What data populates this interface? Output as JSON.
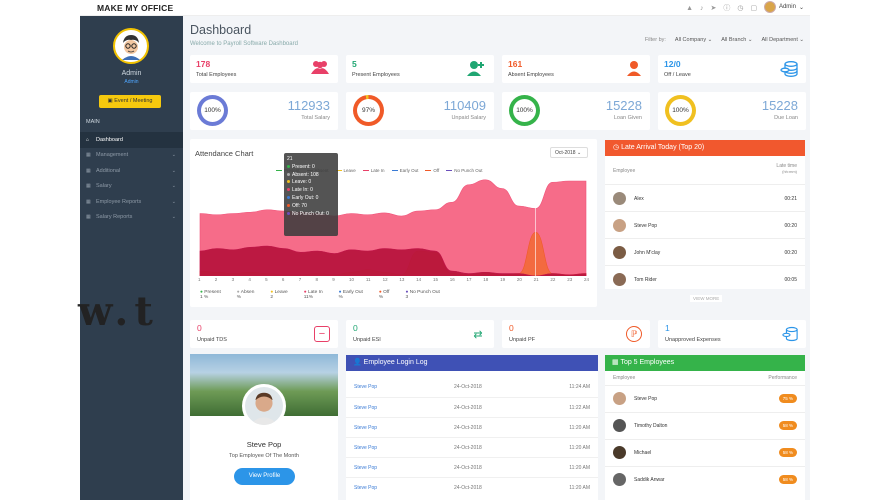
{
  "app": {
    "brand": "MAKE MY OFFICE",
    "admin_label": "Admin"
  },
  "sidebar": {
    "user_name": "Admin",
    "user_role": "Admin",
    "event_button": "Event / Meeting",
    "section": "MAIN",
    "items": [
      {
        "label": "Dashboard",
        "icon": "home-icon",
        "active": true
      },
      {
        "label": "Management",
        "icon": "grid-icon"
      },
      {
        "label": "Additional",
        "icon": "grid-icon"
      },
      {
        "label": "Salary",
        "icon": "grid-icon"
      },
      {
        "label": "Employee Reports",
        "icon": "grid-icon"
      },
      {
        "label": "Salary Reports",
        "icon": "grid-icon"
      }
    ]
  },
  "header": {
    "title": "Dashboard",
    "subtitle": "Welcome to Payroll Software Dashboard",
    "filter_label": "Filter by:",
    "filters": [
      "All Company",
      "All Branch",
      "All Department"
    ]
  },
  "stats": [
    {
      "value": "178",
      "label": "Total Employees",
      "color": "#e84068",
      "icon": "users-icon"
    },
    {
      "value": "5",
      "label": "Present Employees",
      "color": "#1fa672",
      "icon": "user-plus-icon"
    },
    {
      "value": "161",
      "label": "Absent Employees",
      "color": "#f05a28",
      "icon": "user-icon"
    },
    {
      "value": "12/0",
      "label": "Off / Leave",
      "color": "#2c95e8",
      "icon": "coins-icon"
    }
  ],
  "salary_cards": [
    {
      "percent": "100%",
      "value": "112933",
      "label": "Total Salary",
      "ring_color": "#6b7bd6"
    },
    {
      "percent": "97%",
      "value": "110409",
      "label": "Unpaid Salary",
      "ring_color": "#f05a28"
    },
    {
      "percent": "100%",
      "value": "15228",
      "label": "Loan Given",
      "ring_color": "#35b34a"
    },
    {
      "percent": "100%",
      "value": "15228",
      "label": "Due Loan",
      "ring_color": "#f0c020"
    }
  ],
  "attendance": {
    "title": "Attendance Chart",
    "month": "Oct-2018",
    "legend": [
      {
        "name": "Present",
        "color": "#35b34a"
      },
      {
        "name": "Absent",
        "color": "#aaaaaa"
      },
      {
        "name": "Leave",
        "color": "#f0c020"
      },
      {
        "name": "Late In",
        "color": "#e84068"
      },
      {
        "name": "Early Out",
        "color": "#3a7bd5"
      },
      {
        "name": "Off",
        "color": "#f05a28"
      },
      {
        "name": "No Punch Out",
        "color": "#6b4fbb"
      }
    ],
    "tooltip": {
      "day": "21",
      "rows": [
        {
          "text": "Present: 0",
          "color": "#35b34a"
        },
        {
          "text": "Absent: 108",
          "color": "#aaaaaa"
        },
        {
          "text": "Leave: 0",
          "color": "#f0c020"
        },
        {
          "text": "Late In: 0",
          "color": "#e84068"
        },
        {
          "text": "Early Out: 0",
          "color": "#3a7bd5"
        },
        {
          "text": "Off: 70",
          "color": "#f05a28"
        },
        {
          "text": "No Punch Out: 0",
          "color": "#6b4fbb"
        }
      ]
    },
    "x_ticks": [
      "1",
      "2",
      "3",
      "4",
      "5",
      "6",
      "7",
      "8",
      "9",
      "10",
      "11",
      "12",
      "13",
      "14",
      "15",
      "16",
      "17",
      "18",
      "19",
      "20",
      "21",
      "22",
      "23",
      "24"
    ],
    "footer": [
      {
        "name": "Present",
        "value": "1 %"
      },
      {
        "name": "Absen",
        "value": "%"
      },
      {
        "name": "Leave",
        "value": "2"
      },
      {
        "name": "Late In",
        "value": "11%"
      },
      {
        "name": "Early Out",
        "value": "%"
      },
      {
        "name": "Off",
        "value": "%"
      },
      {
        "name": "No Punch Out",
        "value": "3"
      }
    ]
  },
  "chart_data": {
    "type": "area",
    "title": "Attendance Chart",
    "x": [
      "1",
      "2",
      "3",
      "4",
      "5",
      "6",
      "7",
      "8",
      "9",
      "10",
      "11",
      "12",
      "13",
      "14",
      "15",
      "16",
      "17",
      "18",
      "19",
      "20",
      "21",
      "22",
      "23",
      "24"
    ],
    "series": [
      {
        "name": "Absent",
        "values": [
          100,
          98,
          100,
          102,
          106,
          104,
          102,
          100,
          96,
          100,
          98,
          101,
          96,
          104,
          106,
          118,
          146,
          154,
          140,
          112,
          108,
          150,
          152,
          152
        ]
      },
      {
        "name": "Off",
        "values": [
          8,
          6,
          4,
          6,
          4,
          2,
          2,
          4,
          2,
          6,
          10,
          6,
          2,
          40,
          38,
          4,
          2,
          6,
          2,
          4,
          70,
          4,
          2,
          4
        ]
      },
      {
        "name": "Late In",
        "values": [
          40,
          44,
          42,
          46,
          48,
          44,
          38,
          40,
          36,
          42,
          40,
          44,
          42,
          44,
          40,
          8,
          4,
          6,
          4,
          4,
          0,
          4,
          2,
          4
        ]
      }
    ],
    "ylim": [
      0,
      160
    ]
  },
  "late_arrival": {
    "title": "Late Arrival Today (Top 20)",
    "col_employee": "Employee",
    "col_time": "Late time",
    "col_time_sub": "(hh:mm)",
    "rows": [
      {
        "name": "Alex",
        "time": "00:21"
      },
      {
        "name": "Steve Pop",
        "time": "00:20"
      },
      {
        "name": "John M'clay",
        "time": "00:20"
      },
      {
        "name": "Tom Rider",
        "time": "00:05"
      }
    ],
    "view_more": "VIEW MORE"
  },
  "small_cards": [
    {
      "value": "0",
      "label": "Unpaid TDS",
      "color": "#e84068",
      "icon": "minus-box-icon"
    },
    {
      "value": "0",
      "label": "Unpaid ESI",
      "color": "#1fa672",
      "icon": "share-icon"
    },
    {
      "value": "0",
      "label": "Unpaid PF",
      "color": "#f05a28",
      "icon": "pinterest-icon"
    },
    {
      "value": "1",
      "label": "Unapproved Expenses",
      "color": "#2c95e8",
      "icon": "coins-icon"
    }
  ],
  "watermark": "w.t",
  "profile": {
    "name": "Steve Pop",
    "title": "Top Employee Of The Month",
    "button": "View Profile"
  },
  "login_log": {
    "title": "Employee Login Log",
    "rows": [
      {
        "name": "Steve Pop",
        "date": "24-Oct-2018",
        "time": "11:24 AM"
      },
      {
        "name": "Steve Pop",
        "date": "24-Oct-2018",
        "time": "11:22 AM"
      },
      {
        "name": "Steve Pop",
        "date": "24-Oct-2018",
        "time": "11:20 AM"
      },
      {
        "name": "Steve Pop",
        "date": "24-Oct-2018",
        "time": "11:20 AM"
      },
      {
        "name": "Steve Pop",
        "date": "24-Oct-2018",
        "time": "11:20 AM"
      },
      {
        "name": "Steve Pop",
        "date": "24-Oct-2018",
        "time": "11:20 AM"
      }
    ]
  },
  "top_employees": {
    "title": "Top 5 Employees",
    "col_employee": "Employee",
    "col_perf": "Performance",
    "rows": [
      {
        "name": "Steve Pop",
        "perf": "75 %"
      },
      {
        "name": "Timothy Dalton",
        "perf": "58 %"
      },
      {
        "name": "Michael",
        "perf": "58 %"
      },
      {
        "name": "Saddik Anwar",
        "perf": "58 %"
      }
    ]
  }
}
